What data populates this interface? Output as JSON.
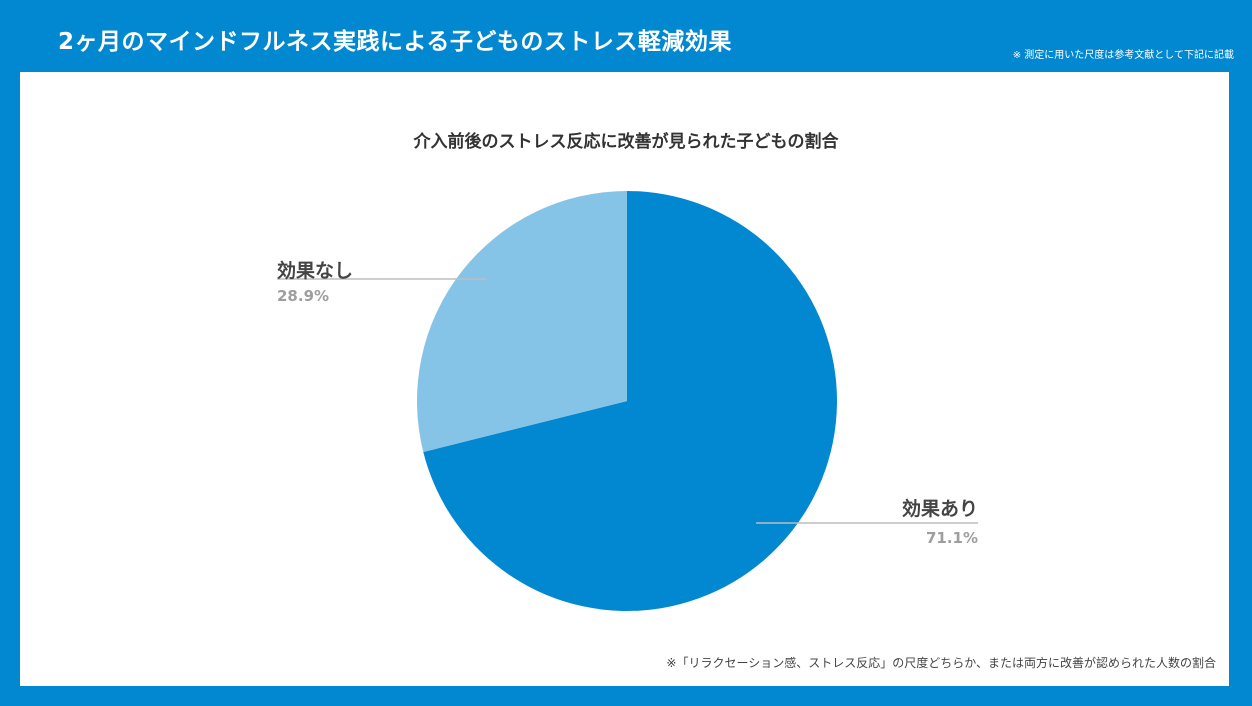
{
  "header": {
    "title": "2ヶ月のマインドフルネス実践による子どものストレス軽減効果",
    "note": "※ 測定に用いた尺度は参考文献として下記に記載"
  },
  "colors": {
    "frame": "#0288D1",
    "slice_effect": "#0288D1",
    "slice_no_effect": "#85C4E6",
    "panel": "#ffffff"
  },
  "chart_data": {
    "type": "pie",
    "title": "介入前後のストレス反応に改善が見られた子どもの割合",
    "slices": [
      {
        "label": "効果あり",
        "value": 71.1,
        "display": "71.1%"
      },
      {
        "label": "効果なし",
        "value": 28.9,
        "display": "28.9%"
      }
    ],
    "start": "12 o'clock",
    "direction": "clockwise"
  },
  "footnote": "※「リラクセーション感、ストレス反応」の尺度どちらか、または両方に改善が認められた人数の割合"
}
